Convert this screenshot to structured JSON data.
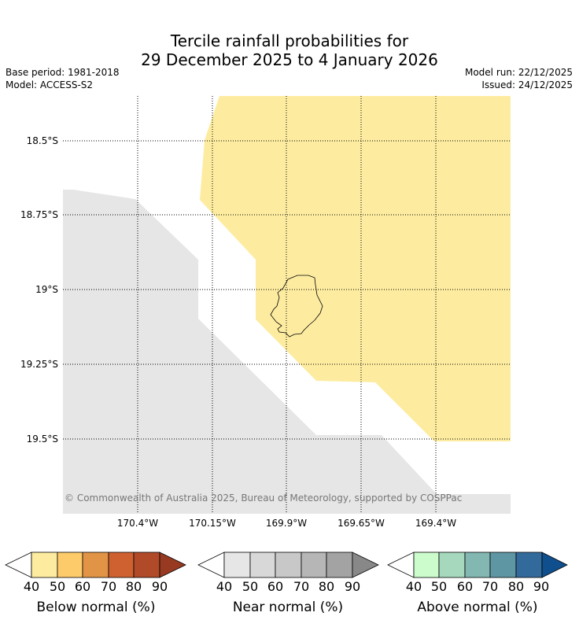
{
  "title": {
    "line1": "Tercile rainfall probabilities for",
    "line2": "29 December 2025 to 4 January 2026"
  },
  "meta": {
    "base_period": "Base period: 1981-2018",
    "model": "Model: ACCESS-S2",
    "model_run": "Model run: 22/12/2025",
    "issued": "Issued: 24/12/2025"
  },
  "map": {
    "lat_labels": [
      "18.5°S",
      "18.75°S",
      "19°S",
      "19.25°S",
      "19.5°S"
    ],
    "lon_labels": [
      "170.4°W",
      "170.15°W",
      "169.9°W",
      "169.65°W",
      "169.4°W"
    ],
    "copyright": "© Commonwealth of Australia 2025, Bureau of Meteorology, supported by COSPPac",
    "regions": [
      {
        "category": "Below normal",
        "probability_bin": "40-50"
      },
      {
        "category": "Near normal",
        "probability_bin": "40-50"
      }
    ]
  },
  "colorbars": [
    {
      "title": "Below normal (%)",
      "ticks": [
        "40",
        "50",
        "60",
        "70",
        "80",
        "90"
      ],
      "colors": [
        "#fdeca0",
        "#fdcb6a",
        "#e29446",
        "#cf6130",
        "#b04a28",
        "#983a22"
      ]
    },
    {
      "title": "Near normal (%)",
      "ticks": [
        "40",
        "50",
        "60",
        "70",
        "80",
        "90"
      ],
      "colors": [
        "#e6e6e6",
        "#d8d8d8",
        "#c8c8c8",
        "#b6b6b6",
        "#a3a3a3",
        "#888888"
      ]
    },
    {
      "title": "Above normal (%)",
      "ticks": [
        "40",
        "50",
        "60",
        "70",
        "80",
        "90"
      ],
      "colors": [
        "#ccfccc",
        "#a6d8be",
        "#82b7b2",
        "#5e96a3",
        "#336a9c",
        "#104f8e"
      ]
    }
  ]
}
